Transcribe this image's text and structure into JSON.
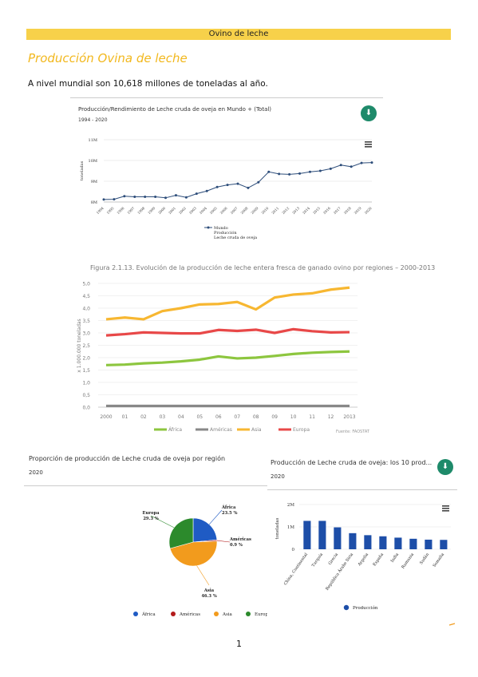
{
  "section_title": "Ovino de leche",
  "heading": "Producción Ovina de leche",
  "paragraph": "A nivel mundial son 10,618 millones de toneladas al año.",
  "page_number": "1",
  "chart1": {
    "title": "Producción/Rendimiento de Leche cruda de oveja en Mundo + (Total)",
    "subtitle": "1994 - 2020",
    "ylabel": "toneladas",
    "yticks": [
      "11M",
      "10M",
      "9M",
      "8M"
    ],
    "legend": [
      "Mundo",
      "Producción",
      "Leche cruda de oveja"
    ]
  },
  "chart2": {
    "caption": "Figura 2.1.13. Evolución de la producción de leche entera fresca de ganado ovino por regiones – 2000-2013",
    "ylabel": "x 1.000.000 toneladas",
    "source": "Fuente: FAOSTAT",
    "yticks": [
      "5,0",
      "4,5",
      "4,0",
      "3,5",
      "3,0",
      "2,5",
      "2,0",
      "1,5",
      "1,0",
      "0,5",
      "0,0"
    ],
    "xticks": [
      "2000",
      "01",
      "02",
      "03",
      "04",
      "05",
      "06",
      "07",
      "08",
      "09",
      "10",
      "11",
      "12",
      "2013"
    ]
  },
  "chart3": {
    "title": "Proporción de producción de Leche cruda de oveja por región",
    "subtitle": "2020",
    "labels": [
      {
        "name": "África",
        "pct": "23.5 %"
      },
      {
        "name": "Américas",
        "pct": "0.9 %"
      },
      {
        "name": "Asia",
        "pct": "46.3 %"
      },
      {
        "name": "Europa",
        "pct": "29.3 %"
      }
    ]
  },
  "chart4": {
    "title": "Producción de Leche cruda de oveja: los 10 prod...",
    "subtitle": "2020",
    "ylabel": "toneladas",
    "yticks": [
      "2M",
      "1M",
      "0"
    ],
    "legend": "Producción"
  },
  "chart_data": [
    {
      "type": "line",
      "title": "Producción/Rendimiento de Leche cruda de oveja en Mundo + (Total)",
      "x": [
        "1994",
        "1995",
        "1996",
        "1997",
        "1998",
        "1999",
        "2000",
        "2001",
        "2002",
        "2003",
        "2004",
        "2005",
        "2006",
        "2007",
        "2008",
        "2009",
        "2010",
        "2011",
        "2012",
        "2013",
        "2014",
        "2015",
        "2016",
        "2017",
        "2018",
        "2019",
        "2020"
      ],
      "series": [
        {
          "name": "Mundo",
          "values": [
            8.12,
            8.13,
            8.28,
            8.25,
            8.25,
            8.25,
            8.2,
            8.32,
            8.22,
            8.4,
            8.53,
            8.72,
            8.82,
            8.88,
            8.68,
            8.95,
            9.45,
            9.35,
            9.33,
            9.37,
            9.45,
            9.5,
            9.6,
            9.78,
            9.7,
            9.88,
            9.9
          ]
        }
      ],
      "ylim": [
        8,
        11
      ]
    },
    {
      "type": "line",
      "title": "Figura 2.1.13. Evolución de la producción de leche entera fresca de ganado ovino por regiones – 2000-2013",
      "x": [
        "2000",
        "01",
        "02",
        "03",
        "04",
        "05",
        "06",
        "07",
        "08",
        "09",
        "10",
        "11",
        "12",
        "2013"
      ],
      "series": [
        {
          "name": "África",
          "color": "#8dc63f",
          "values": [
            1.7,
            1.72,
            1.77,
            1.8,
            1.85,
            1.92,
            2.05,
            1.97,
            2.0,
            2.07,
            2.15,
            2.2,
            2.23,
            2.25
          ]
        },
        {
          "name": "Américas",
          "color": "#888888",
          "values": [
            0.05,
            0.05,
            0.05,
            0.05,
            0.05,
            0.05,
            0.05,
            0.05,
            0.05,
            0.05,
            0.05,
            0.05,
            0.05,
            0.05
          ]
        },
        {
          "name": "Asia",
          "color": "#f7b731",
          "values": [
            3.55,
            3.62,
            3.55,
            3.88,
            4.0,
            4.15,
            4.17,
            4.25,
            3.95,
            4.43,
            4.55,
            4.6,
            4.75,
            4.83
          ]
        },
        {
          "name": "Europa",
          "color": "#e84848",
          "values": [
            2.9,
            2.95,
            3.02,
            3.0,
            2.98,
            2.98,
            3.12,
            3.08,
            3.13,
            3.0,
            3.15,
            3.07,
            3.02,
            3.03
          ]
        }
      ],
      "ylim": [
        0,
        5
      ]
    },
    {
      "type": "pie",
      "title": "Proporción de producción de Leche cruda de oveja por región",
      "slices": [
        {
          "name": "África",
          "value": 23.5,
          "color": "#1f5bc4"
        },
        {
          "name": "Américas",
          "value": 0.9,
          "color": "#b31b1b"
        },
        {
          "name": "Asia",
          "value": 46.3,
          "color": "#f29b1d"
        },
        {
          "name": "Europa",
          "value": 29.3,
          "color": "#2c8a2c"
        }
      ]
    },
    {
      "type": "bar",
      "title": "Producción de Leche cruda de oveja: los 10 prod...",
      "categories": [
        "China, Continental",
        "Turquía",
        "Grecia",
        "República Árabe Siria",
        "Argelia",
        "España",
        "India",
        "Rumania",
        "Sudán",
        "Somalia"
      ],
      "values": [
        1.27,
        1.27,
        0.98,
        0.72,
        0.63,
        0.58,
        0.52,
        0.47,
        0.43,
        0.42
      ],
      "ylim": [
        0,
        2
      ]
    }
  ]
}
